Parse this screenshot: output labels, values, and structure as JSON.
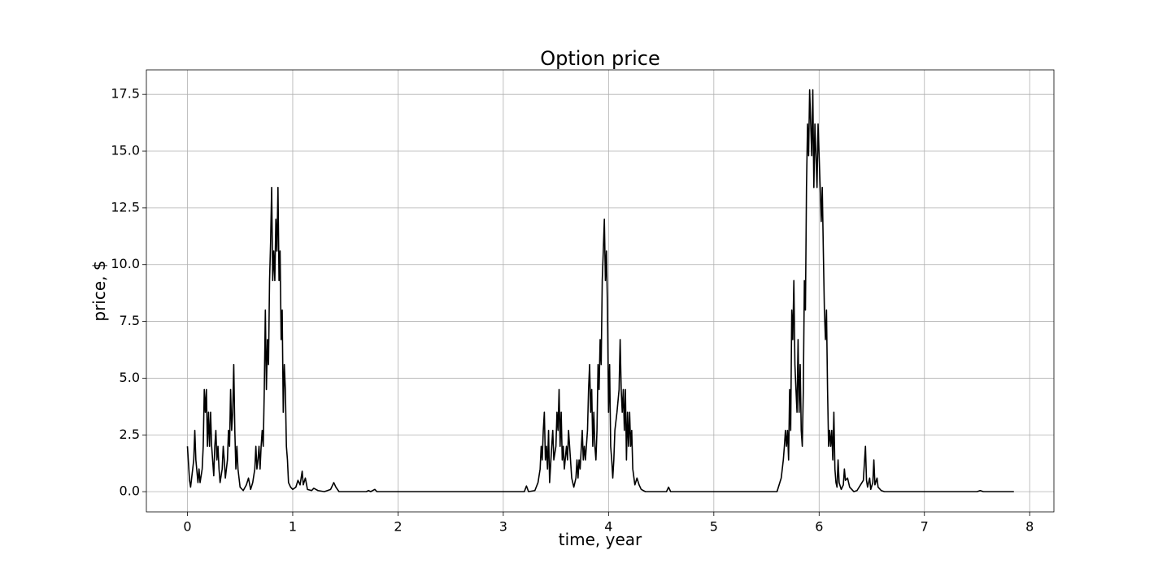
{
  "chart_data": {
    "type": "line",
    "title": "Option price",
    "x_label": "time, year",
    "y_label": "price, $",
    "x": [
      0,
      0.02,
      0.03,
      0.05,
      0.06,
      0.07,
      0.08,
      0.1,
      0.11,
      0.12,
      0.14,
      0.15,
      0.16,
      0.17,
      0.18,
      0.19,
      0.2,
      0.21,
      0.22,
      0.23,
      0.25,
      0.26,
      0.27,
      0.28,
      0.29,
      0.3,
      0.31,
      0.33,
      0.34,
      0.35,
      0.36,
      0.38,
      0.39,
      0.4,
      0.41,
      0.42,
      0.43,
      0.44,
      0.45,
      0.46,
      0.47,
      0.48,
      0.5,
      0.53,
      0.56,
      0.58,
      0.6,
      0.62,
      0.64,
      0.65,
      0.66,
      0.67,
      0.68,
      0.69,
      0.7,
      0.71,
      0.72,
      0.73,
      0.74,
      0.75,
      0.76,
      0.77,
      0.78,
      0.79,
      0.8,
      0.81,
      0.82,
      0.83,
      0.84,
      0.85,
      0.86,
      0.87,
      0.88,
      0.89,
      0.9,
      0.91,
      0.92,
      0.93,
      0.94,
      0.95,
      0.96,
      0.98,
      1.0,
      1.03,
      1.05,
      1.07,
      1.09,
      1.1,
      1.12,
      1.14,
      1.18,
      1.2,
      1.24,
      1.3,
      1.36,
      1.39,
      1.41,
      1.44,
      1.7,
      1.72,
      1.74,
      1.78,
      1.8,
      3.2,
      3.22,
      3.24,
      3.3,
      3.33,
      3.35,
      3.36,
      3.37,
      3.38,
      3.39,
      3.4,
      3.41,
      3.42,
      3.43,
      3.44,
      3.46,
      3.47,
      3.48,
      3.5,
      3.51,
      3.52,
      3.53,
      3.54,
      3.55,
      3.56,
      3.57,
      3.58,
      3.6,
      3.61,
      3.62,
      3.63,
      3.65,
      3.67,
      3.69,
      3.7,
      3.71,
      3.72,
      3.73,
      3.75,
      3.76,
      3.77,
      3.78,
      3.8,
      3.81,
      3.82,
      3.83,
      3.84,
      3.85,
      3.86,
      3.87,
      3.88,
      3.89,
      3.9,
      3.91,
      3.92,
      3.93,
      3.94,
      3.95,
      3.96,
      3.97,
      3.98,
      3.99,
      4.0,
      4.01,
      4.02,
      4.03,
      4.04,
      4.05,
      4.06,
      4.08,
      4.1,
      4.11,
      4.12,
      4.13,
      4.14,
      4.15,
      4.16,
      4.17,
      4.18,
      4.19,
      4.2,
      4.21,
      4.22,
      4.23,
      4.25,
      4.27,
      4.29,
      4.31,
      4.35,
      4.55,
      4.57,
      4.59,
      5.6,
      5.62,
      5.64,
      5.66,
      5.67,
      5.68,
      5.69,
      5.7,
      5.71,
      5.72,
      5.73,
      5.74,
      5.75,
      5.76,
      5.77,
      5.78,
      5.79,
      5.8,
      5.81,
      5.82,
      5.83,
      5.84,
      5.85,
      5.86,
      5.87,
      5.88,
      5.89,
      5.9,
      5.91,
      5.92,
      5.93,
      5.94,
      5.95,
      5.96,
      5.97,
      5.98,
      5.99,
      6.0,
      6.01,
      6.02,
      6.03,
      6.04,
      6.05,
      6.06,
      6.07,
      6.08,
      6.09,
      6.1,
      6.11,
      6.12,
      6.13,
      6.14,
      6.15,
      6.16,
      6.17,
      6.18,
      6.19,
      6.21,
      6.23,
      6.24,
      6.25,
      6.27,
      6.29,
      6.31,
      6.33,
      6.36,
      6.42,
      6.44,
      6.45,
      6.46,
      6.48,
      6.49,
      6.51,
      6.52,
      6.53,
      6.55,
      6.56,
      6.59,
      6.62,
      7.5,
      7.53,
      7.56,
      7.85
    ],
    "values": [
      2.0,
      0.5,
      0.2,
      1.0,
      1.4,
      2.7,
      1.4,
      0.4,
      1.0,
      0.4,
      1.0,
      2.0,
      4.5,
      3.5,
      4.5,
      2.0,
      3.5,
      2.0,
      3.5,
      2.0,
      0.7,
      2.0,
      2.7,
      1.4,
      2.0,
      1.0,
      0.4,
      1.0,
      2.0,
      1.4,
      0.6,
      1.4,
      2.7,
      2.0,
      4.5,
      2.7,
      3.5,
      5.6,
      2.7,
      1.0,
      2.0,
      1.0,
      0.2,
      0.05,
      0.3,
      0.6,
      0.1,
      0.4,
      1.0,
      2.0,
      1.0,
      1.4,
      2.0,
      1.0,
      2.0,
      2.7,
      2.0,
      4.5,
      8.0,
      4.5,
      6.7,
      5.6,
      9.3,
      11.0,
      13.4,
      9.3,
      10.6,
      9.3,
      12.0,
      10.6,
      13.4,
      9.3,
      10.6,
      6.7,
      8.0,
      3.5,
      5.6,
      4.5,
      2.0,
      1.4,
      0.4,
      0.2,
      0.1,
      0.2,
      0.5,
      0.3,
      0.9,
      0.3,
      0.6,
      0.1,
      0.05,
      0.15,
      0.05,
      0,
      0.1,
      0.4,
      0.2,
      0,
      0,
      0.05,
      0,
      0.1,
      0,
      0,
      0.25,
      0,
      0.05,
      0.4,
      1.0,
      2.0,
      1.4,
      2.7,
      3.5,
      1.4,
      2.0,
      1.0,
      2.7,
      0.4,
      2.0,
      2.7,
      1.4,
      2.0,
      3.5,
      2.7,
      4.5,
      2.0,
      3.5,
      1.4,
      2.0,
      1.0,
      2.0,
      1.4,
      2.7,
      2.0,
      0.6,
      0.2,
      0.6,
      1.4,
      0.6,
      1.4,
      1.0,
      2.7,
      1.4,
      2.0,
      1.4,
      2.7,
      4.5,
      5.6,
      3.5,
      4.5,
      2.0,
      3.5,
      2.0,
      1.4,
      2.7,
      5.6,
      4.5,
      6.7,
      5.6,
      9.3,
      10.6,
      12.0,
      9.3,
      10.6,
      8.0,
      3.5,
      5.6,
      2.0,
      1.4,
      0.6,
      1.4,
      2.7,
      3.5,
      4.5,
      6.7,
      4.5,
      3.5,
      4.5,
      2.7,
      4.5,
      1.4,
      3.5,
      2.0,
      3.5,
      2.0,
      2.7,
      1.0,
      0.3,
      0.6,
      0.3,
      0.1,
      0,
      0,
      0.2,
      0,
      0,
      0.3,
      0.6,
      1.4,
      2.0,
      2.7,
      2.0,
      2.7,
      1.4,
      4.5,
      2.7,
      8.0,
      6.7,
      9.3,
      5.6,
      4.5,
      3.5,
      6.7,
      3.5,
      5.6,
      2.7,
      2.0,
      4.5,
      9.3,
      8.0,
      13.4,
      16.2,
      14.8,
      17.7,
      16.2,
      14.8,
      17.7,
      13.4,
      16.2,
      14.8,
      13.4,
      16.2,
      14.8,
      13.4,
      11.9,
      13.4,
      10.6,
      8.0,
      6.7,
      8.0,
      4.5,
      2.0,
      2.7,
      2.0,
      2.7,
      1.4,
      3.5,
      1.0,
      0.4,
      0.2,
      1.4,
      0.4,
      0.1,
      0.3,
      1.0,
      0.5,
      0.6,
      0.2,
      0.1,
      0,
      0.05,
      0.5,
      2.0,
      0.5,
      0.2,
      0.6,
      0.1,
      0.4,
      1.4,
      0.3,
      0.6,
      0.2,
      0.05,
      0,
      0,
      0.05,
      0,
      0
    ],
    "color": "#000000",
    "xlim": [
      -0.39,
      8.23
    ],
    "ylim": [
      -0.89,
      18.58
    ],
    "xticks": [
      0,
      1,
      2,
      3,
      4,
      5,
      6,
      7,
      8
    ],
    "yticks": [
      {
        "value": 0,
        "label": "0.0"
      },
      2.5,
      {
        "value": 5,
        "label": "5.0"
      },
      7.5,
      {
        "value": 10,
        "label": "10.0"
      },
      12.5,
      {
        "value": 15,
        "label": "15.0"
      },
      17.5
    ],
    "grid": true
  }
}
